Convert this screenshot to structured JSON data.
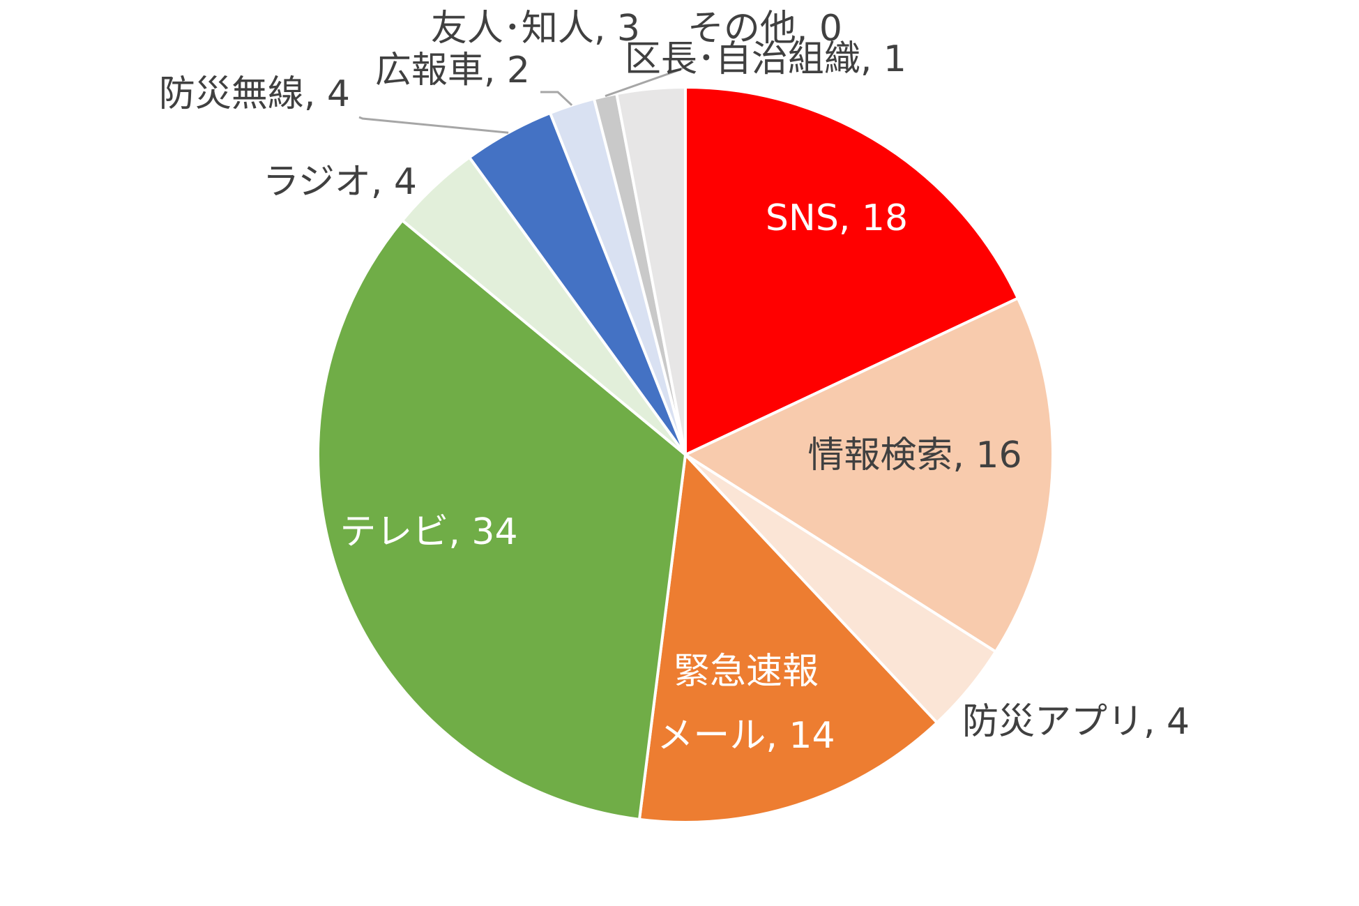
{
  "chart_data": {
    "type": "pie",
    "title": "",
    "slices": [
      {
        "name": "SNS",
        "value": 18,
        "label": "SNS, 18",
        "color": "#ff0000"
      },
      {
        "name": "情報検索",
        "value": 16,
        "label": "情報検索, 16",
        "color": "#f8cbad"
      },
      {
        "name": "防災アプリ",
        "value": 4,
        "label": "防災アプリ, 4",
        "color": "#fbe5d6"
      },
      {
        "name": "緊急速報メール",
        "value": 14,
        "label_lines": [
          "緊急速報",
          "メール, 14"
        ],
        "color": "#ed7d31"
      },
      {
        "name": "テレビ",
        "value": 34,
        "label": "テレビ, 34",
        "color": "#70ad47"
      },
      {
        "name": "ラジオ",
        "value": 4,
        "label": "ラジオ, 4",
        "color": "#e2efda"
      },
      {
        "name": "防災無線",
        "value": 4,
        "label": "防災無線, 4",
        "color": "#4472c4"
      },
      {
        "name": "広報車",
        "value": 2,
        "label": "広報車, 2",
        "color": "#d9e1f2"
      },
      {
        "name": "友人・知人",
        "value": 3,
        "label": "友人･知人, 3",
        "color": "#e7e6e6"
      },
      {
        "name": "その他",
        "value": 0,
        "label": "その他, 0",
        "color": "#ffffff"
      },
      {
        "name": "区長・自治組織",
        "value": 1,
        "label": "区長･自治組織, 1",
        "color": "#c9c9c9"
      }
    ]
  }
}
